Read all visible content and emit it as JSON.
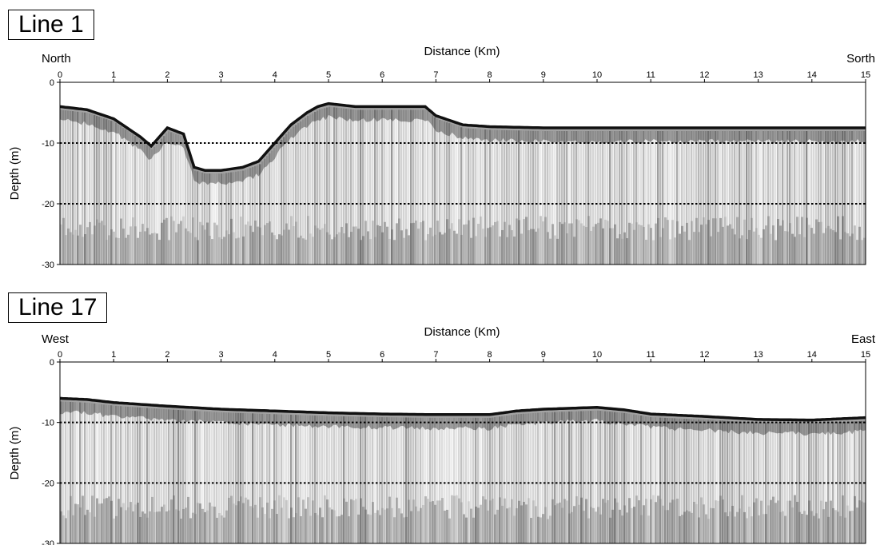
{
  "chart_data": [
    {
      "type": "heatmap",
      "panel_label": "Line 1",
      "xlabel": "Distance (Km)",
      "ylabel": "Depth (m)",
      "left_direction": "North",
      "right_direction": "Sorth",
      "xlim": [
        0,
        15
      ],
      "ylim": [
        -30,
        0
      ],
      "x_ticks": [
        0,
        1,
        2,
        3,
        4,
        5,
        6,
        7,
        8,
        9,
        10,
        11,
        12,
        13,
        14,
        15
      ],
      "y_ticks": [
        0,
        -10,
        -20,
        -30
      ],
      "reference_lines_depth": [
        -10,
        -20
      ],
      "seabed_profile": {
        "distance_km": [
          0,
          0.5,
          1,
          1.5,
          1.7,
          1.85,
          2,
          2.3,
          2.5,
          2.7,
          3,
          3.4,
          3.7,
          4,
          4.3,
          4.6,
          4.8,
          5,
          5.5,
          6,
          6.5,
          6.8,
          7,
          7.5,
          8,
          9,
          10,
          11,
          12,
          13,
          14,
          15
        ],
        "depth_m": [
          -4,
          -4.5,
          -6,
          -9,
          -10.5,
          -9,
          -7.5,
          -8.5,
          -14,
          -14.5,
          -14.5,
          -14,
          -13,
          -10,
          -7,
          -5,
          -4,
          -3.5,
          -4,
          -4,
          -4,
          -4,
          -5.5,
          -7,
          -7.3,
          -7.5,
          -7.5,
          -7.5,
          -7.5,
          -7.5,
          -7.5,
          -7.5
        ]
      }
    },
    {
      "type": "heatmap",
      "panel_label": "Line 17",
      "xlabel": "Distance (Km)",
      "ylabel": "Depth (m)",
      "left_direction": "West",
      "right_direction": "East",
      "xlim": [
        0,
        15
      ],
      "ylim": [
        -30,
        0
      ],
      "x_ticks": [
        0,
        1,
        2,
        3,
        4,
        5,
        6,
        7,
        8,
        9,
        10,
        11,
        12,
        13,
        14,
        15
      ],
      "y_ticks": [
        0,
        -10,
        -20,
        -30
      ],
      "reference_lines_depth": [
        -10,
        -20
      ],
      "seabed_profile": {
        "distance_km": [
          0,
          0.5,
          1,
          2,
          3,
          4,
          5,
          6,
          7,
          8,
          8.5,
          9,
          10,
          10.5,
          11,
          12,
          13,
          14,
          15
        ],
        "depth_m": [
          -6,
          -6.2,
          -6.7,
          -7.3,
          -7.8,
          -8.1,
          -8.4,
          -8.6,
          -8.7,
          -8.7,
          -8.1,
          -7.8,
          -7.5,
          -7.9,
          -8.6,
          -9.0,
          -9.5,
          -9.6,
          -9.2
        ]
      }
    }
  ]
}
